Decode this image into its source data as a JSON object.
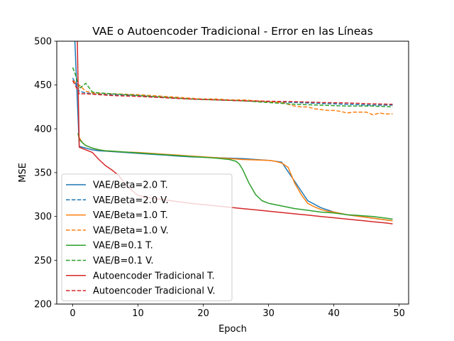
{
  "chart_data": {
    "type": "line",
    "title": "VAE o Autoencoder Tradicional - Error en las Líneas",
    "xlabel": "Epoch",
    "ylabel": "MSE",
    "xlim": [
      -2.45,
      51.45
    ],
    "ylim": [
      200,
      500
    ],
    "xticks": [
      0,
      10,
      20,
      30,
      40,
      50
    ],
    "yticks": [
      200,
      250,
      300,
      350,
      400,
      450,
      500
    ],
    "grid": false,
    "legend_position": "lower-left",
    "series": [
      {
        "name": "VAE/Beta=2.0 T.",
        "color": "#1f77b4",
        "dash": "solid",
        "x": [
          0,
          1,
          2,
          3,
          4,
          5,
          6,
          7,
          8,
          9,
          10,
          12,
          14,
          16,
          18,
          20,
          22,
          24,
          26,
          28,
          30,
          32,
          34,
          36,
          38,
          40,
          42,
          44,
          46,
          48,
          49
        ],
        "y": [
          560,
          380,
          378,
          376,
          375,
          374.5,
          374,
          373.5,
          373,
          372.5,
          372,
          371,
          370,
          369,
          368,
          367.5,
          367,
          366.5,
          366,
          365,
          364,
          362,
          340,
          318,
          310,
          305,
          302,
          300,
          298,
          296,
          295
        ]
      },
      {
        "name": "VAE/Beta=2.0 V.",
        "color": "#1f77b4",
        "dash": "dashed",
        "x": [
          0,
          1,
          2,
          3,
          4,
          6,
          8,
          10,
          14,
          18,
          22,
          26,
          30,
          34,
          38,
          42,
          46,
          49
        ],
        "y": [
          458,
          443,
          441,
          440,
          439.5,
          439,
          438.5,
          438,
          436,
          434,
          433,
          432,
          431,
          430,
          429,
          428,
          427,
          427
        ]
      },
      {
        "name": "VAE/Beta=1.0 T.",
        "color": "#ff7f0e",
        "dash": "solid",
        "x": [
          1,
          1.5,
          2,
          3,
          4,
          5,
          6,
          7,
          8,
          10,
          12,
          14,
          16,
          18,
          20,
          22,
          24,
          26,
          28,
          30,
          31,
          32,
          33,
          34,
          35,
          36,
          37,
          38,
          39,
          40,
          42,
          44,
          46,
          48,
          49
        ],
        "y": [
          390,
          384,
          381,
          378,
          376,
          375,
          374.5,
          374,
          373.5,
          373,
          372,
          371,
          370,
          369,
          368,
          367,
          366,
          365,
          364.5,
          364,
          363,
          361,
          356,
          338,
          325,
          315,
          311,
          308,
          306,
          305,
          302,
          300,
          298,
          296,
          295
        ]
      },
      {
        "name": "VAE/Beta=1.0 V.",
        "color": "#ff7f0e",
        "dash": "dashed",
        "x": [
          0,
          1,
          2,
          3,
          4,
          6,
          8,
          10,
          12,
          14,
          16,
          18,
          20,
          22,
          24,
          26,
          28,
          30,
          32,
          33,
          34,
          35,
          36,
          37,
          38,
          39,
          40,
          41,
          42,
          43,
          44,
          45,
          46,
          47,
          48,
          49
        ],
        "y": [
          455,
          450,
          443,
          441,
          440.5,
          440,
          439.5,
          439,
          438,
          437,
          436,
          435,
          434,
          434,
          433,
          433,
          432,
          431,
          430,
          428,
          426,
          425,
          425,
          423,
          422,
          421,
          421,
          420,
          418,
          419,
          419,
          419,
          416,
          418,
          417,
          417
        ]
      },
      {
        "name": "VAE/B=0.1 T.",
        "color": "#2ca02c",
        "dash": "solid",
        "x": [
          0.8,
          1,
          1.5,
          2,
          3,
          4,
          5,
          6,
          8,
          10,
          12,
          14,
          16,
          18,
          20,
          22,
          24,
          25,
          25.5,
          26,
          27,
          28,
          29,
          30,
          32,
          34,
          36,
          38,
          40,
          42,
          44,
          46,
          48,
          49
        ],
        "y": [
          395,
          388,
          384,
          381,
          378,
          376,
          375,
          374.5,
          373.5,
          372.5,
          371.5,
          370.5,
          369.5,
          368.5,
          367.5,
          366.5,
          365,
          363,
          360,
          354,
          338,
          325,
          318,
          315,
          312,
          309,
          307,
          305,
          304,
          302,
          301,
          300,
          298,
          297
        ]
      },
      {
        "name": "VAE/B=0.1 V.",
        "color": "#2ca02c",
        "dash": "dashed",
        "x": [
          0,
          0.5,
          1,
          2,
          3,
          4,
          6,
          8,
          10,
          14,
          18,
          22,
          26,
          30,
          34,
          38,
          42,
          46,
          49
        ],
        "y": [
          470,
          460,
          446,
          452,
          442,
          441,
          440,
          439,
          438,
          436,
          434,
          433,
          432,
          430,
          428,
          427,
          426,
          426,
          425
        ]
      },
      {
        "name": "Autoencoder Tradicional T.",
        "color": "#d62728",
        "dash": "solid",
        "x": [
          0.7,
          1,
          2,
          3,
          4,
          5,
          6,
          7,
          8,
          9,
          10,
          12,
          14,
          16,
          18,
          20,
          22,
          24,
          26,
          28,
          30,
          32,
          34,
          36,
          38,
          40,
          42,
          44,
          46,
          48,
          49
        ],
        "y": [
          500,
          379,
          376,
          373,
          365,
          358,
          353,
          347,
          337,
          330,
          324,
          321,
          319,
          317,
          315,
          313.5,
          312,
          310.5,
          309,
          307.5,
          306,
          304.5,
          303,
          301.5,
          300,
          298.5,
          297,
          295.5,
          294,
          292.5,
          291.5
        ]
      },
      {
        "name": "Autoencoder Tradicional V.",
        "color": "#d62728",
        "dash": "dashed",
        "x": [
          0,
          0.5,
          1,
          2,
          3,
          4,
          6,
          8,
          10,
          14,
          18,
          22,
          26,
          30,
          34,
          38,
          42,
          46,
          49
        ],
        "y": [
          455,
          448,
          440,
          440,
          439.5,
          439,
          438,
          437.5,
          437,
          435.5,
          434,
          433,
          432,
          431.5,
          431,
          430,
          429.5,
          428.5,
          428
        ]
      }
    ]
  }
}
